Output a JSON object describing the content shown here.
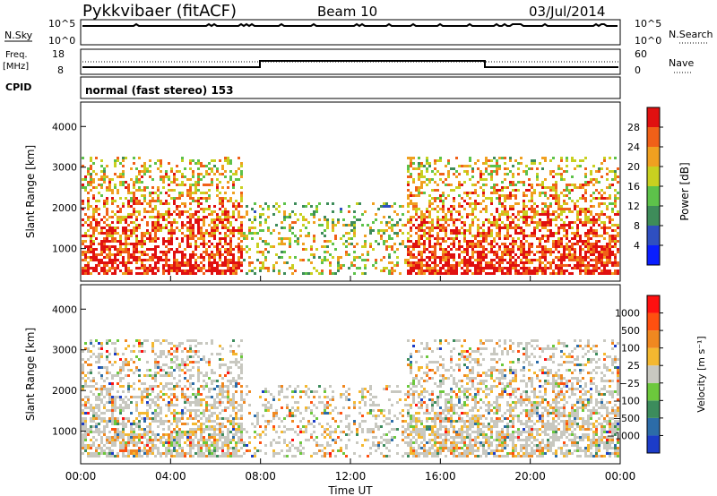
{
  "header": {
    "station": "Pykkvibaer (fitACF)",
    "beam": "Beam 10",
    "date": "03/Jul/2014"
  },
  "strips": {
    "nsky_label": "N.Sky",
    "nsky_ticks": [
      "10^5",
      "10^0"
    ],
    "nsearch_label": "N.Search",
    "freq_label": "Freq.",
    "freq_unit": "[MHz]",
    "freq_ticks": [
      "18",
      "8"
    ],
    "nave_label": "Nave",
    "nave_ticks": [
      "60",
      "0"
    ],
    "cpid_label": "CPID",
    "cpid_text": "normal (fast stereo) 153"
  },
  "chart_data": [
    {
      "type": "heatmap",
      "name": "power",
      "ylabel": "Slant Range [km]",
      "yticks": [
        "1000",
        "2000",
        "3000",
        "4000"
      ],
      "ylim": [
        200,
        4600
      ],
      "colorbar_label": "Power [dB]",
      "colorbar_ticks": [
        "4",
        "8",
        "12",
        "16",
        "20",
        "24",
        "28"
      ],
      "colorbar_colors": [
        "#0a1eff",
        "#2f4fc0",
        "#3e8c5a",
        "#5dc24a",
        "#c8d020",
        "#f0a020",
        "#f06018",
        "#e01010"
      ]
    },
    {
      "type": "heatmap",
      "name": "velocity",
      "ylabel": "Slant Range [km]",
      "yticks": [
        "1000",
        "2000",
        "3000",
        "4000"
      ],
      "ylim": [
        200,
        4600
      ],
      "xlabel": "Time UT",
      "xticks": [
        "00:00",
        "04:00",
        "08:00",
        "12:00",
        "16:00",
        "20:00",
        "00:00"
      ],
      "colorbar_label": "Velocity [m s⁻¹]",
      "colorbar_ticks": [
        "1000",
        "500",
        "100",
        "25",
        "−25",
        "−100",
        "−500",
        "−1000"
      ],
      "colorbar_colors": [
        "#1c3cc8",
        "#2c6ca8",
        "#3c8c5c",
        "#6cc83c",
        "#c8c8c0",
        "#f4b830",
        "#f08820",
        "#ff5010",
        "#ff1010"
      ]
    }
  ]
}
